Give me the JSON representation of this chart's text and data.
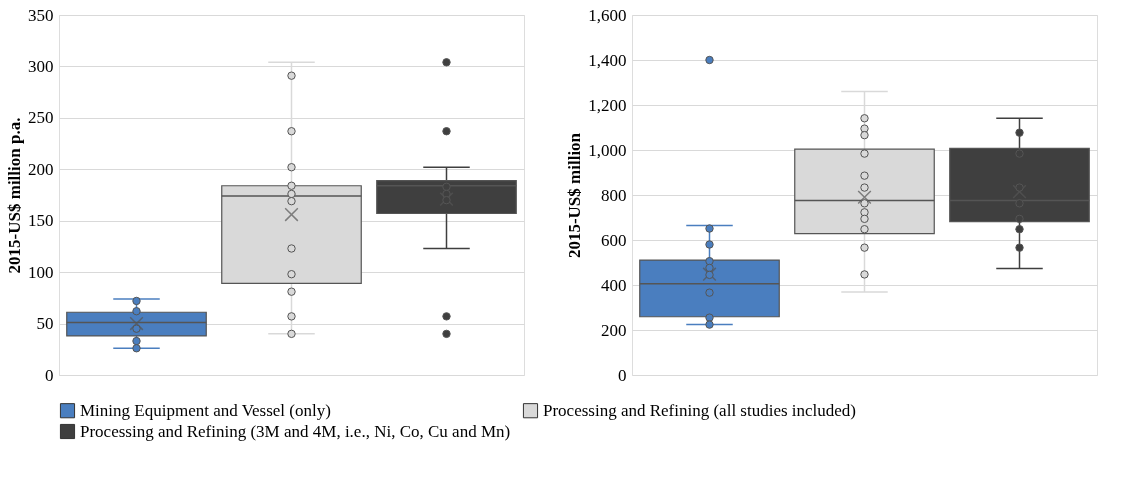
{
  "chart_data": [
    {
      "type": "box",
      "categories": [
        null,
        null,
        null
      ],
      "ylabel": "2015-US$ million p.a.",
      "ylim": [
        0,
        350
      ],
      "yticks": [
        0,
        50,
        100,
        150,
        200,
        250,
        300,
        350
      ],
      "grid": "y",
      "legend": "bottom",
      "tick_labels": "y",
      "marker": "circle",
      "series": [
        {
          "name": "Mining Equipment and Vessel (only)",
          "color": "#4a7ebf",
          "boxes": [
            {
              "low": 26,
              "q1": 38,
              "median": 51,
              "q3": 61,
              "high": 74,
              "mean": 50,
              "outliers": [
                72,
                62,
                45,
                33,
                26
              ]
            },
            null,
            null
          ]
        },
        {
          "name": "Processing and Refining (all studies included)",
          "color": "#d9d9d9",
          "boxes": [
            null,
            {
              "low": 40,
              "q1": 89,
              "median": 174,
              "q3": 184,
              "high": 304,
              "mean": 156,
              "outliers": [
                291,
                237,
                202,
                184,
                176,
                169,
                123,
                98,
                81,
                57,
                40
              ]
            },
            null
          ]
        },
        {
          "name": "Processing and Refining (3M and 4M, i.e., Ni, Co, Cu and Mn)",
          "color": "#3f3f3f",
          "boxes": [
            null,
            null,
            {
              "low": 123,
              "q1": 157,
              "median": 184,
              "q3": 189,
              "high": 202,
              "mean": 171,
              "outliers": [
                304,
                237,
                183,
                176,
                170,
                57,
                40
              ]
            }
          ]
        }
      ]
    },
    {
      "type": "box",
      "categories": [
        null,
        null,
        null
      ],
      "ylabel": "2015-US$ million",
      "ylim": [
        0,
        1600
      ],
      "yticks": [
        0,
        200,
        400,
        600,
        800,
        {
          "value": 1000,
          "label": "1,000"
        },
        {
          "value": 1200,
          "label": "1,200"
        },
        {
          "value": 1400,
          "label": "1,400"
        },
        {
          "value": 1600,
          "label": "1,600"
        }
      ],
      "grid": "y",
      "tick_labels": "y",
      "marker": "circle",
      "series": [
        {
          "name": "Mining Equipment and Vessel (only)",
          "color": "#4a7ebf",
          "boxes": [
            {
              "low": 224,
              "q1": 259,
              "median": 406,
              "q3": 511,
              "high": 665,
              "mean": 448,
              "outliers": [
                1400,
                651,
                580,
                506,
                476,
                445,
                366,
                255,
                224
              ]
            },
            null,
            null
          ]
        },
        {
          "name": "Processing and Refining (all studies included)",
          "color": "#d9d9d9",
          "boxes": [
            null,
            {
              "low": 369,
              "q1": 628,
              "median": 776,
              "q3": 1004,
              "high": 1260,
              "mean": 790,
              "outliers": [
                1141,
                1095,
                1066,
                984,
                886,
                833,
                763,
                723,
                694,
                648,
                566,
                447
              ]
            },
            null
          ]
        },
        {
          "name": "Processing and Refining (3M and 4M, i.e., Ni, Co, Cu and Mn)",
          "color": "#3f3f3f",
          "boxes": [
            null,
            null,
            {
              "low": 473,
              "q1": 682,
              "median": 776,
              "q3": 1007,
              "high": 1141,
              "mean": 815,
              "outliers": [
                1077,
                984,
                833,
                763,
                694,
                648,
                566
              ]
            }
          ]
        }
      ]
    }
  ]
}
